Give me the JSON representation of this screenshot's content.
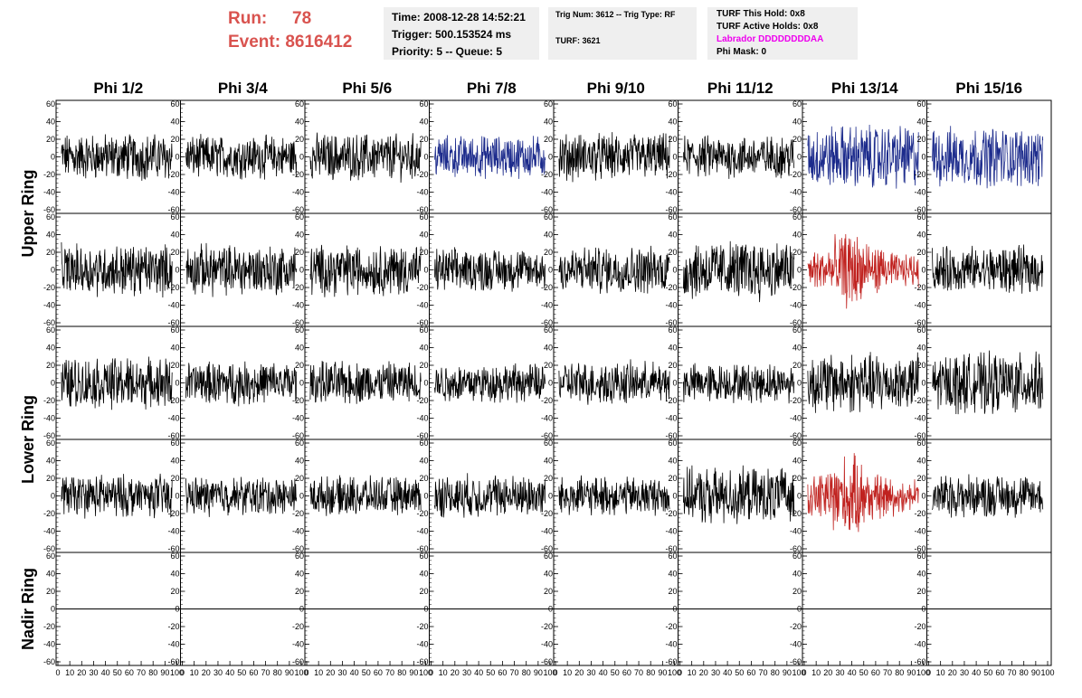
{
  "header": {
    "run_label": "Run:",
    "run_value": "78",
    "event_label": "Event:",
    "event_value": "8616412",
    "time_line": "Time: 2008-12-28 14:52:21",
    "trigger_line": "Trigger: 500.153524 ms",
    "priority_line": "Priority: 5 -- Queue: 5",
    "trig_line": "Trig Num: 3612 -- Trig Type: RF",
    "turf_line": "TURF: 3621",
    "hold_line": "TURF This Hold: 0x8",
    "active_line": "TURF Active Holds: 0x8",
    "labrador_line": "Labrador DDDDDDDDAA",
    "phimask_line": "Phi Mask: 0"
  },
  "colors": {
    "header_red": "#d9534f",
    "labrador_magenta": "#ee00ee",
    "trace_black": "#000000",
    "trace_blue": "#1c2b8c",
    "trace_red": "#c0221f"
  },
  "chart_data": {
    "type": "line",
    "columns": [
      "Phi 1/2",
      "Phi 3/4",
      "Phi 5/6",
      "Phi 7/8",
      "Phi 9/10",
      "Phi 11/12",
      "Phi 13/14",
      "Phi 15/16"
    ],
    "ring_labels": [
      "Upper Ring",
      "Lower Ring",
      "Nadir Ring"
    ],
    "rows": 5,
    "row_rings": [
      "Upper Ring",
      "Upper Ring",
      "Lower Ring",
      "Lower Ring",
      "Nadir Ring"
    ],
    "xlim": [
      0,
      100
    ],
    "ylim": [
      -60,
      60
    ],
    "xticks": [
      "0",
      "10",
      "20",
      "30",
      "40",
      "50",
      "60",
      "70",
      "80",
      "90",
      "100"
    ],
    "yticks": [
      "60",
      "40",
      "20",
      "0",
      "-20",
      "-40",
      "-60"
    ],
    "trace_color_grid": [
      [
        "black",
        "black",
        "black",
        "blue",
        "black",
        "black",
        "blue",
        "blue"
      ],
      [
        "black",
        "black",
        "black",
        "black",
        "black",
        "black",
        "red",
        "black"
      ],
      [
        "black",
        "black",
        "black",
        "black",
        "black",
        "black",
        "black",
        "black"
      ],
      [
        "black",
        "black",
        "black",
        "black",
        "black",
        "black",
        "red",
        "black"
      ],
      [
        "flat",
        "flat",
        "flat",
        "flat",
        "flat",
        "flat",
        "flat",
        "flat"
      ]
    ],
    "trace_amplitude_grid": [
      [
        22,
        20,
        22,
        20,
        22,
        20,
        30,
        28
      ],
      [
        24,
        24,
        24,
        20,
        22,
        28,
        30,
        22
      ],
      [
        24,
        20,
        20,
        18,
        20,
        18,
        28,
        28
      ],
      [
        20,
        18,
        18,
        20,
        18,
        26,
        32,
        20
      ],
      [
        0,
        0,
        0,
        0,
        0,
        0,
        0,
        0
      ]
    ]
  }
}
